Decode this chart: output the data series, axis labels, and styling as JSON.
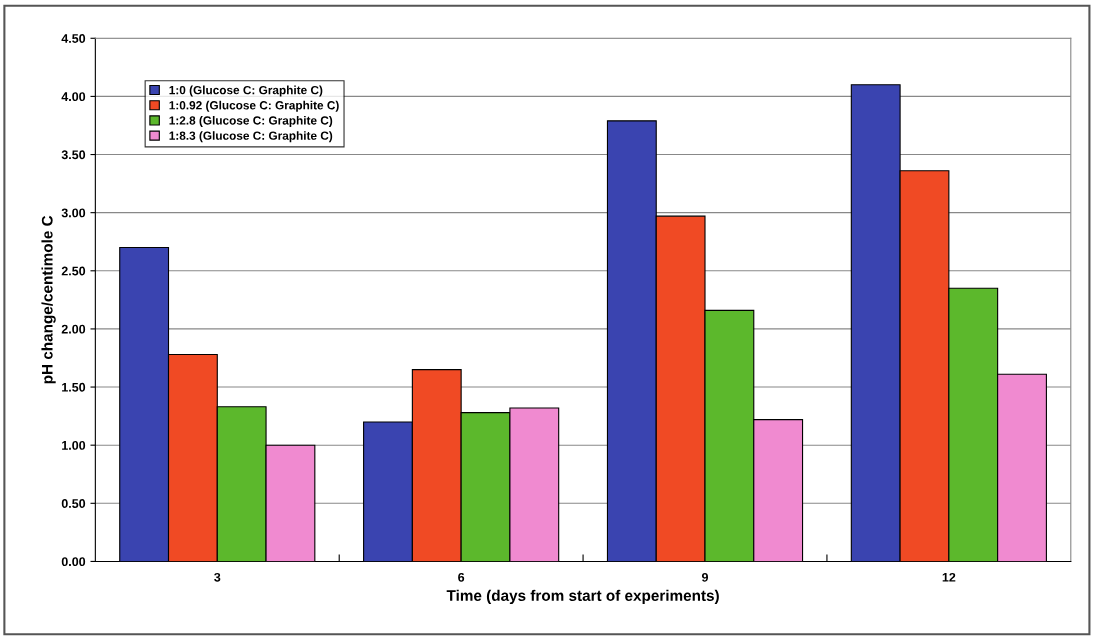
{
  "chart_data": {
    "type": "bar",
    "xlabel": "Time (days from start of experiments)",
    "ylabel": "pH change/centimole C",
    "categories": [
      "3",
      "6",
      "9",
      "12"
    ],
    "series": [
      {
        "name": "1:0 (Glucose C: Graphite C)",
        "color": "#3a44b0",
        "values": [
          2.7,
          1.2,
          3.79,
          4.1
        ]
      },
      {
        "name": "1:0.92 (Glucose C: Graphite C)",
        "color": "#f04a24",
        "values": [
          1.78,
          1.65,
          2.97,
          3.36
        ]
      },
      {
        "name": "1:2.8 (Glucose C: Graphite C)",
        "color": "#5cb82c",
        "values": [
          1.33,
          1.28,
          2.16,
          2.35
        ]
      },
      {
        "name": "1:8.3 (Glucose C: Graphite C)",
        "color": "#f08ad0",
        "values": [
          1.0,
          1.32,
          1.22,
          1.61
        ]
      }
    ],
    "ylim": [
      0,
      4.5
    ],
    "yticks": [
      {
        "value": 0,
        "label": "0.00"
      },
      {
        "value": 0.5,
        "label": "0.50"
      },
      {
        "value": 1,
        "label": "1.00"
      },
      {
        "value": 1.5,
        "label": "1.50"
      },
      {
        "value": 2,
        "label": "2.00"
      },
      {
        "value": 2.5,
        "label": "2.50"
      },
      {
        "value": 3,
        "label": "3.00"
      },
      {
        "value": 3.5,
        "label": "3.50"
      },
      {
        "value": 4,
        "label": "4.00"
      },
      {
        "value": 4.5,
        "label": "4.50"
      }
    ],
    "grid": "y",
    "legend": "top left"
  }
}
